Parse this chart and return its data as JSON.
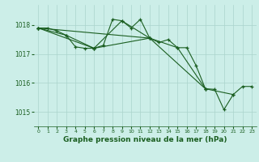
{
  "bg_color": "#cceee8",
  "grid_color": "#aad4cc",
  "line_color": "#1a5e20",
  "title": "Graphe pression niveau de la mer (hPa)",
  "xlim": [
    -0.5,
    23.5
  ],
  "ylim": [
    1014.5,
    1018.7
  ],
  "yticks": [
    1015,
    1016,
    1017,
    1018
  ],
  "xticks": [
    0,
    1,
    2,
    3,
    4,
    5,
    6,
    7,
    8,
    9,
    10,
    11,
    12,
    13,
    14,
    15,
    16,
    17,
    18,
    19,
    20,
    21,
    22,
    23
  ],
  "series": [
    {
      "x": [
        0,
        1,
        2,
        3,
        4,
        5,
        6,
        7,
        8,
        9,
        10,
        11,
        12,
        13,
        14,
        15,
        16,
        17,
        18,
        19,
        20,
        21,
        22,
        23
      ],
      "y": [
        1017.9,
        1017.9,
        1017.8,
        1017.65,
        1017.25,
        1017.2,
        1017.2,
        1017.3,
        1018.2,
        1018.15,
        1017.9,
        1018.2,
        1017.55,
        1017.4,
        1017.5,
        1017.22,
        1017.22,
        1016.6,
        1015.8,
        1015.78,
        1015.08,
        1015.6,
        1015.88,
        1015.88
      ]
    },
    {
      "x": [
        0,
        3,
        6,
        9,
        12,
        15,
        18,
        21
      ],
      "y": [
        1017.9,
        1017.65,
        1017.2,
        1018.15,
        1017.55,
        1017.22,
        1015.8,
        1015.6
      ]
    },
    {
      "x": [
        0,
        6,
        12,
        18
      ],
      "y": [
        1017.9,
        1017.2,
        1017.55,
        1015.8
      ]
    },
    {
      "x": [
        0,
        12
      ],
      "y": [
        1017.9,
        1017.55
      ]
    }
  ]
}
